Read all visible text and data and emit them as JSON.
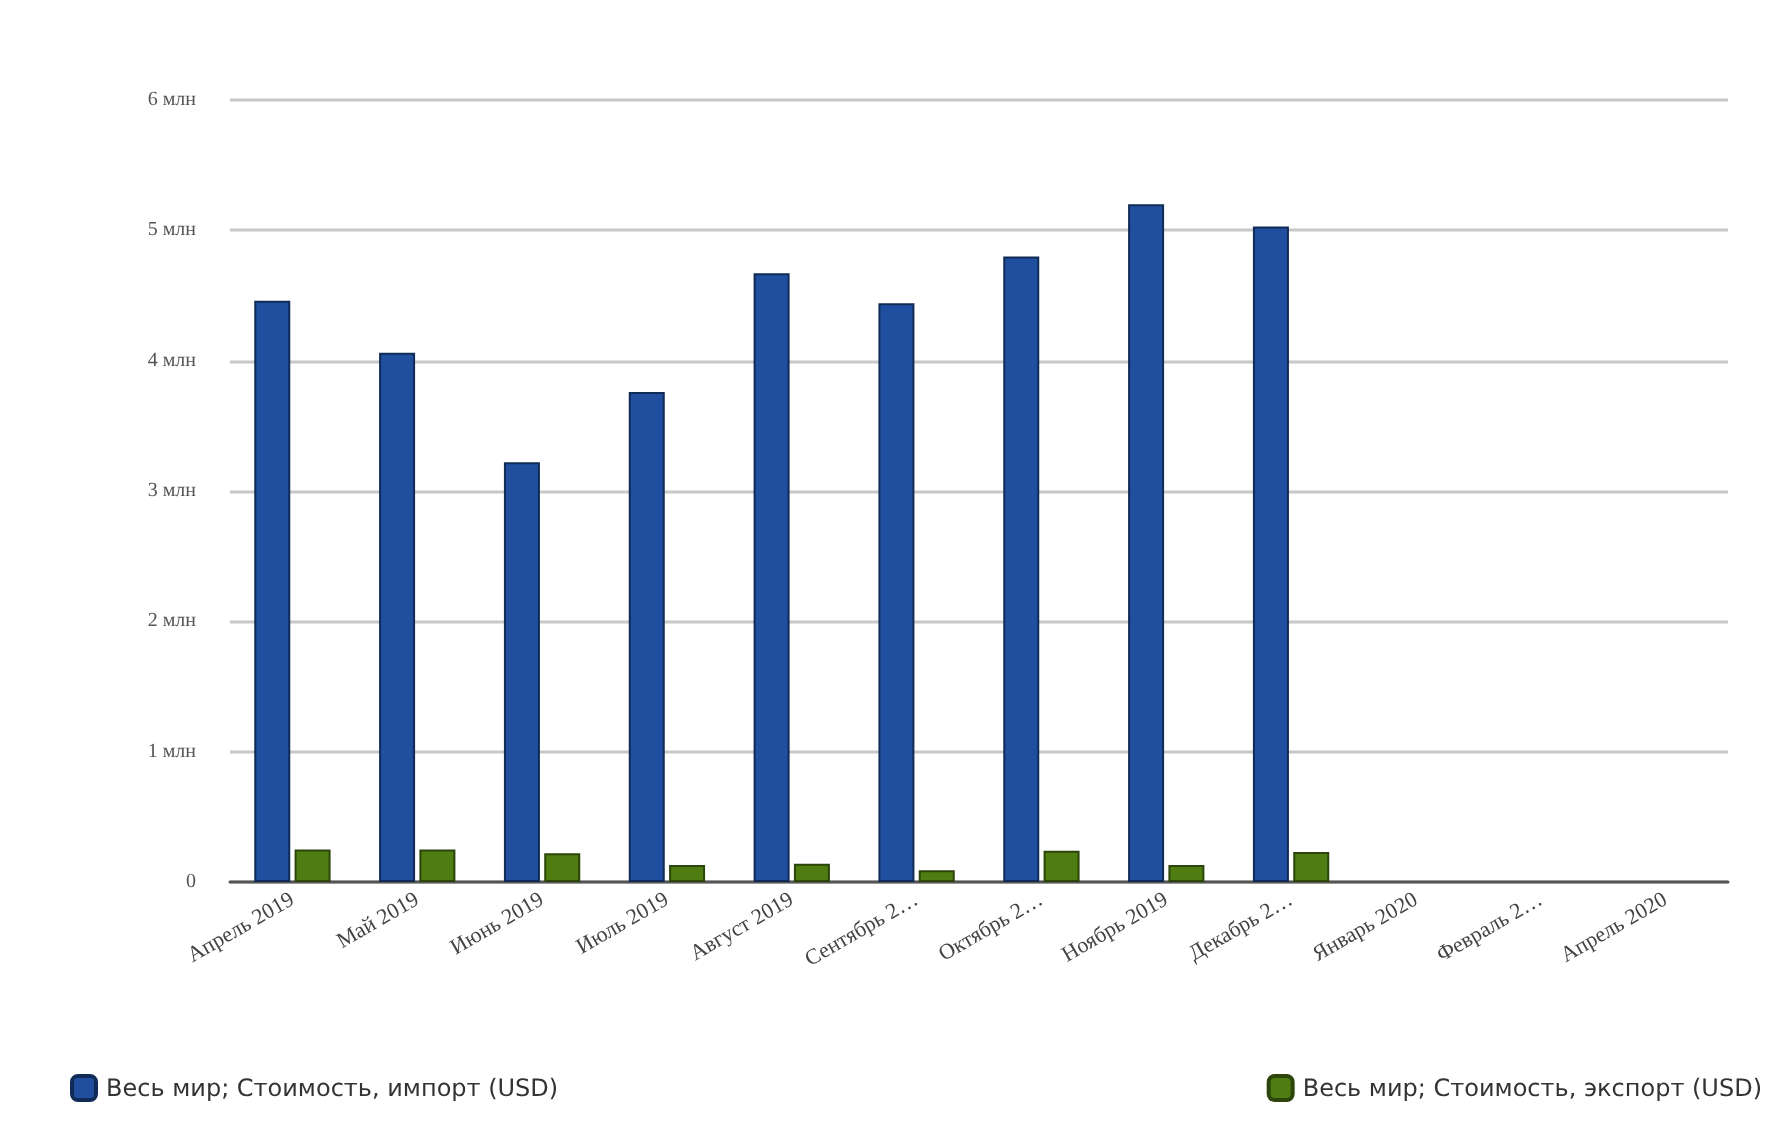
{
  "chart_data": {
    "type": "bar",
    "categories": [
      "Апрель 2019",
      "Май 2019",
      "Июнь 2019",
      "Июль 2019",
      "Август 2019",
      "Сентябрь 2…",
      "Октябрь 2…",
      "Ноябрь 2019",
      "Декабрь 2…",
      "Январь 2020",
      "Февраль 2…",
      "Апрель 2020"
    ],
    "series": [
      {
        "name": "Весь мир; Стоимость, импорт (USD)",
        "color": "#1f4f9e",
        "values": [
          4.46,
          4.06,
          3.22,
          3.76,
          4.67,
          4.44,
          4.8,
          5.2,
          5.03,
          null,
          null,
          null
        ]
      },
      {
        "name": "Весь мир; Стоимость, экспорт (USD)",
        "color": "#4f7d12",
        "values": [
          0.25,
          0.25,
          0.22,
          0.13,
          0.14,
          0.09,
          0.24,
          0.13,
          0.23,
          null,
          null,
          null
        ]
      }
    ],
    "ylim": [
      0,
      6
    ],
    "yticks": [
      0,
      {
        "value": 1,
        "label": "1 млн"
      },
      {
        "value": 2,
        "label": "2 млн"
      },
      {
        "value": 3,
        "label": "3 млн"
      },
      {
        "value": 4,
        "label": "4 млн"
      },
      {
        "value": 5,
        "label": "5 млн"
      },
      {
        "value": 6,
        "label": "6 млн"
      }
    ],
    "grid": "y",
    "legend": "bottom"
  }
}
